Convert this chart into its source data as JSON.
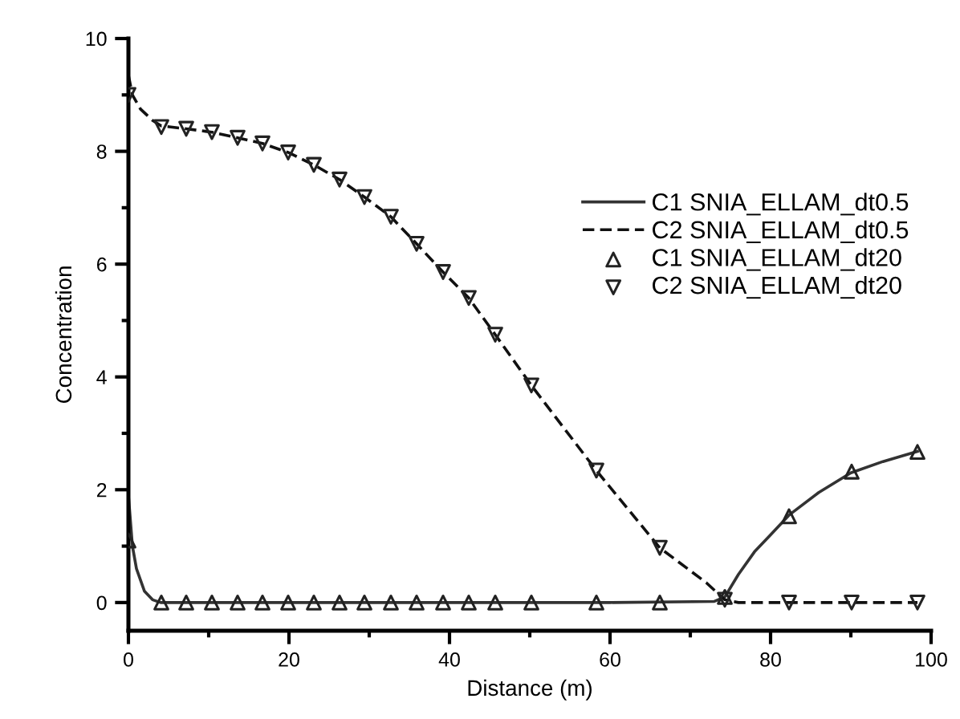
{
  "chart_data": {
    "type": "line",
    "xlabel": "Distance (m)",
    "ylabel": "Concentration",
    "xlim": [
      0,
      100
    ],
    "ylim": [
      -0.5,
      10
    ],
    "xticks": [
      0,
      {
        "value": 10,
        "label": null
      },
      20,
      {
        "value": 30,
        "label": null
      },
      40,
      {
        "value": 50,
        "label": null
      },
      60,
      {
        "value": 70,
        "label": null
      },
      80,
      {
        "value": 90,
        "label": null
      },
      100
    ],
    "yticks": [
      0,
      {
        "value": 1,
        "label": null
      },
      2,
      {
        "value": 3,
        "label": null
      },
      4,
      {
        "value": 5,
        "label": null
      },
      6,
      {
        "value": 7,
        "label": null
      },
      8,
      {
        "value": 9,
        "label": null
      },
      10
    ],
    "grid": false,
    "legend": "right",
    "series": [
      {
        "name": "C1 SNIA_ELLAM_dt0.5",
        "line_style": "solid",
        "color": "#333333",
        "x": [
          0,
          0.5,
          1,
          2,
          3,
          4,
          20,
          40,
          60,
          73,
          74.3,
          76,
          78,
          80,
          82.3,
          86,
          90,
          94,
          98.3
        ],
        "values": [
          1.9,
          1.0,
          0.6,
          0.2,
          0.05,
          0,
          0,
          0,
          0,
          0.02,
          0.1,
          0.5,
          0.9,
          1.2,
          1.55,
          1.95,
          2.3,
          2.5,
          2.68
        ]
      },
      {
        "name": "C2 SNIA_ELLAM_dt0.5",
        "line_style": "dashed",
        "color": "#111111",
        "x": [
          0,
          0.5,
          1.5,
          3,
          4.1,
          7.2,
          10.4,
          13.6,
          16.7,
          19.9,
          23.1,
          26.3,
          29.4,
          32.7,
          35.9,
          39.2,
          42.4,
          45.7,
          50.2,
          58.3,
          66.2,
          72,
          74.3,
          76,
          82.3,
          90.1,
          98.3
        ],
        "values": [
          9.35,
          9.0,
          8.75,
          8.55,
          8.45,
          8.4,
          8.34,
          8.24,
          8.14,
          7.98,
          7.76,
          7.5,
          7.19,
          6.84,
          6.36,
          5.86,
          5.4,
          4.75,
          3.85,
          2.34,
          0.97,
          0.35,
          0.05,
          0,
          0,
          0,
          0
        ]
      },
      {
        "name": "C1 SNIA_ELLAM_dt20",
        "type": "scatter",
        "marker": "triangle",
        "color": "#222222",
        "x": [
          0,
          4.1,
          7.2,
          10.4,
          13.6,
          16.7,
          19.9,
          23.1,
          26.3,
          29.4,
          32.7,
          35.9,
          39.2,
          42.4,
          45.7,
          50.2,
          58.3,
          66.2,
          74.3,
          82.3,
          90.1,
          98.3
        ],
        "values": [
          1.1,
          0,
          0,
          0,
          0,
          0,
          0,
          0,
          0,
          0,
          0,
          0,
          0,
          0,
          0,
          0,
          0,
          0,
          0.1,
          1.53,
          2.32,
          2.67
        ]
      },
      {
        "name": "C2 SNIA_ELLAM_dt20",
        "type": "scatter",
        "marker": "triangle_down",
        "color": "#222222",
        "x": [
          0,
          4.1,
          7.2,
          10.4,
          13.6,
          16.7,
          19.9,
          23.1,
          26.3,
          29.4,
          32.7,
          35.9,
          39.2,
          42.4,
          45.7,
          50.2,
          58.3,
          66.2,
          74.3,
          82.3,
          90.1,
          98.3
        ],
        "values": [
          9.0,
          8.43,
          8.4,
          8.34,
          8.24,
          8.14,
          7.98,
          7.76,
          7.5,
          7.19,
          6.84,
          6.36,
          5.86,
          5.4,
          4.75,
          3.85,
          2.34,
          0.97,
          0.05,
          0,
          0,
          0
        ]
      }
    ]
  }
}
